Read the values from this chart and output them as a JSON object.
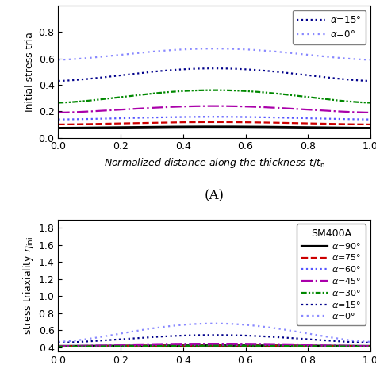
{
  "top_chart": {
    "ylabel": "Initial stress tria",
    "ylim": [
      0.0,
      1.0
    ],
    "yticks": [
      0.0,
      0.2,
      0.4,
      0.6,
      0.8
    ],
    "xlim": [
      0.0,
      1.0
    ],
    "xticks": [
      0.0,
      0.2,
      0.4,
      0.6,
      0.8,
      1.0
    ],
    "xlabel": "Normalized distance along the thickness $t/t_{\\rm n}$",
    "panel_label": "(A)",
    "curves": [
      {
        "alpha": 90,
        "color": "#000000",
        "linestyle": "solid",
        "start": 0.073,
        "peak": 0.083,
        "end": 0.073
      },
      {
        "alpha": 75,
        "color": "#cc0000",
        "linestyle": "dashed",
        "start": 0.1,
        "peak": 0.118,
        "end": 0.1
      },
      {
        "alpha": 60,
        "color": "#5555ff",
        "linestyle": "dotted",
        "start": 0.138,
        "peak": 0.158,
        "end": 0.138
      },
      {
        "alpha": 45,
        "color": "#aa00aa",
        "linestyle": "dashdot",
        "start": 0.19,
        "peak": 0.24,
        "end": 0.19
      },
      {
        "alpha": 30,
        "color": "#008800",
        "linestyle": "dashdotdot",
        "start": 0.265,
        "peak": 0.36,
        "end": 0.265
      },
      {
        "alpha": 15,
        "color": "#00008b",
        "linestyle": "dotted",
        "start": 0.43,
        "peak": 0.525,
        "end": 0.43
      },
      {
        "alpha": 0,
        "color": "#8888ff",
        "linestyle": "finedotted",
        "start": 0.59,
        "peak": 0.675,
        "end": 0.59
      }
    ],
    "legend_entries": [
      {
        "label": "$\\alpha$=15°",
        "color": "#00008b",
        "linestyle": "dotted"
      },
      {
        "label": "$\\alpha$=0°",
        "color": "#8888ff",
        "linestyle": "finedotted"
      }
    ]
  },
  "bottom_chart": {
    "ylabel": "stress triaxiality $\\eta_{\\rm ini}$",
    "ylim": [
      0.35,
      1.9
    ],
    "yticks": [
      0.4,
      0.6,
      0.8,
      1.0,
      1.2,
      1.4,
      1.6,
      1.8
    ],
    "xlim": [
      0.0,
      1.0
    ],
    "xticks": [
      0.0,
      0.2,
      0.4,
      0.6,
      0.8,
      1.0
    ],
    "curves": [
      {
        "alpha": 90,
        "color": "#000000",
        "linestyle": "solid",
        "start": 0.415,
        "peak": 0.422,
        "end": 0.415
      },
      {
        "alpha": 75,
        "color": "#cc0000",
        "linestyle": "dashed",
        "start": 0.415,
        "peak": 0.422,
        "end": 0.415
      },
      {
        "alpha": 60,
        "color": "#5555ff",
        "linestyle": "dotted",
        "start": 0.415,
        "peak": 0.43,
        "end": 0.415
      },
      {
        "alpha": 45,
        "color": "#aa00aa",
        "linestyle": "dashdot",
        "start": 0.415,
        "peak": 0.435,
        "end": 0.415
      },
      {
        "alpha": 30,
        "color": "#008800",
        "linestyle": "dashdotdot",
        "start": 0.41,
        "peak": 0.42,
        "end": 0.41
      },
      {
        "alpha": 15,
        "color": "#00008b",
        "linestyle": "dotted",
        "start": 0.455,
        "peak": 0.545,
        "end": 0.455
      },
      {
        "alpha": 0,
        "color": "#8888ff",
        "linestyle": "finedotted",
        "start": 0.465,
        "peak": 0.68,
        "end": 0.465
      }
    ],
    "legend_title": "SM400A",
    "legend_entries": [
      {
        "label": "$\\alpha$=90°",
        "color": "#000000",
        "linestyle": "solid"
      },
      {
        "label": "$\\alpha$=75°",
        "color": "#cc0000",
        "linestyle": "dashed"
      },
      {
        "label": "$\\alpha$=60°",
        "color": "#5555ff",
        "linestyle": "dotted"
      },
      {
        "label": "$\\alpha$=45°",
        "color": "#aa00aa",
        "linestyle": "dashdot"
      },
      {
        "label": "$\\alpha$=30°",
        "color": "#008800",
        "linestyle": "dashdotdot"
      },
      {
        "label": "$\\alpha$=15°",
        "color": "#00008b",
        "linestyle": "dotted"
      },
      {
        "label": "$\\alpha$=0°",
        "color": "#8888ff",
        "linestyle": "finedotted"
      }
    ]
  }
}
